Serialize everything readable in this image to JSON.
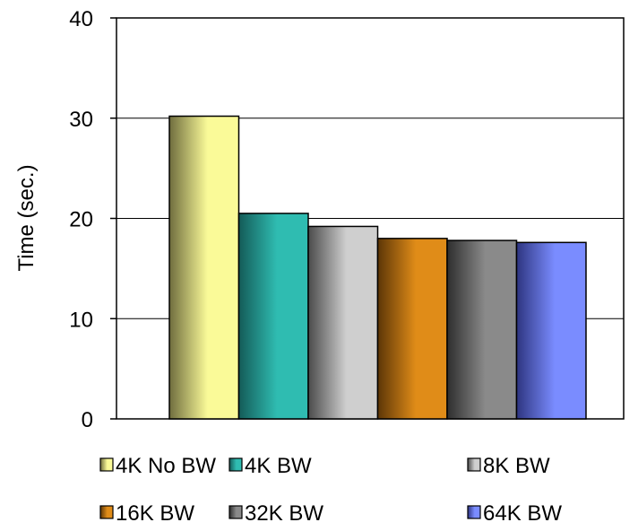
{
  "chart_data": {
    "type": "bar",
    "title": "",
    "xlabel": "",
    "ylabel": "Time (sec.)",
    "ylim": [
      0,
      40
    ],
    "yticks": [
      0,
      10,
      20,
      30,
      40
    ],
    "grid": true,
    "legend_position": "bottom",
    "series": [
      {
        "name": "4K No BW",
        "value": 30.2,
        "color_light": "#fafa98",
        "color_dark": "#6f6d3e"
      },
      {
        "name": "4K BW",
        "value": 20.5,
        "color_light": "#2fbcb1",
        "color_dark": "#145b58"
      },
      {
        "name": "8K BW",
        "value": 19.2,
        "color_light": "#cfcfcf",
        "color_dark": "#4b4b4b"
      },
      {
        "name": "16K BW",
        "value": 18.0,
        "color_light": "#e08c18",
        "color_dark": "#5c3607"
      },
      {
        "name": "32K BW",
        "value": 17.8,
        "color_light": "#8a8a8a",
        "color_dark": "#2e2e2e"
      },
      {
        "name": "64K BW",
        "value": 17.6,
        "color_light": "#7a8cff",
        "color_dark": "#2e3580"
      }
    ]
  }
}
